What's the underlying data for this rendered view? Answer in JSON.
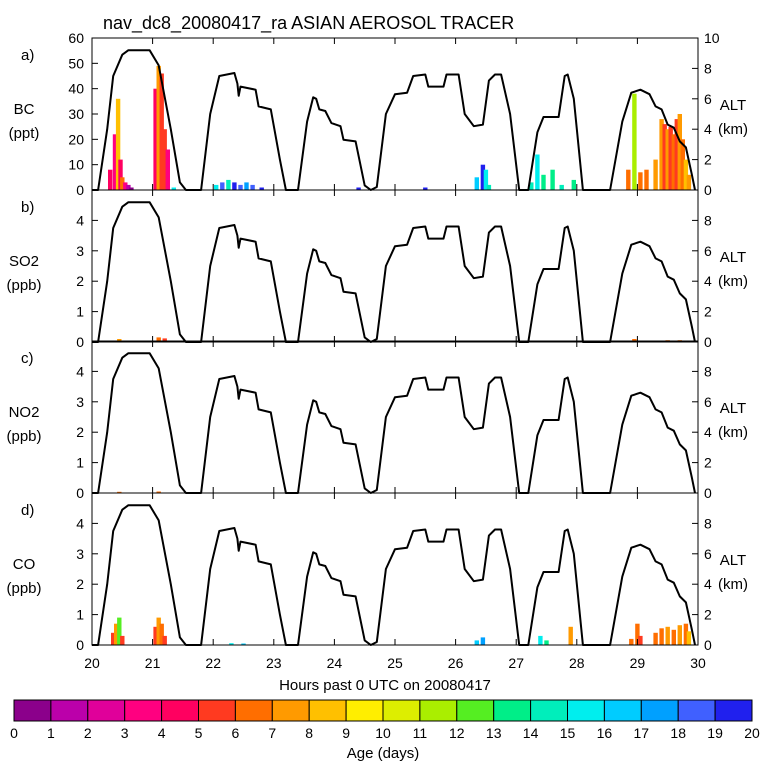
{
  "title": "nav_dc8_20080417_ra ASIAN AEROSOL TRACER",
  "xlabel": "Hours past 0 UTC on 20080417",
  "x_ticks": [
    20,
    21,
    22,
    23,
    24,
    25,
    26,
    27,
    28,
    29,
    30
  ],
  "xlim": [
    20,
    30
  ],
  "alt_axis": {
    "label": "ALT",
    "unit": "(km)",
    "ticks": [
      0,
      2,
      4,
      6,
      8,
      10
    ],
    "ylim": [
      0,
      10
    ]
  },
  "colorbar": {
    "label": "Age (days)",
    "ticks": [
      0,
      1,
      2,
      3,
      4,
      5,
      6,
      7,
      8,
      9,
      10,
      11,
      12,
      13,
      14,
      15,
      16,
      17,
      18,
      19,
      20
    ],
    "colors": [
      "#8b008b",
      "#bb00aa",
      "#e0009a",
      "#ff0080",
      "#ff0060",
      "#ff3a20",
      "#ff6e00",
      "#ff9a00",
      "#ffc000",
      "#ffee00",
      "#ddee00",
      "#aaee00",
      "#55ee22",
      "#00ee88",
      "#00eebb",
      "#00eeee",
      "#00ccff",
      "#00a0ff",
      "#4060ff",
      "#2020ee",
      "#7a1aff"
    ]
  },
  "panels": [
    {
      "letter": "a)",
      "species": "BC",
      "unit": "(ppt)",
      "y_ticks": [
        0,
        10,
        20,
        30,
        40,
        50,
        60
      ],
      "ylim": [
        0,
        60
      ]
    },
    {
      "letter": "b)",
      "species": "SO2",
      "unit": "(ppb)",
      "y_ticks": [
        0,
        1,
        2,
        3,
        4
      ],
      "ylim": [
        0,
        5
      ]
    },
    {
      "letter": "c)",
      "species": "NO2",
      "unit": "(ppb)",
      "y_ticks": [
        0,
        1,
        2,
        3,
        4
      ],
      "ylim": [
        0,
        5
      ]
    },
    {
      "letter": "d)",
      "species": "CO",
      "unit": "(ppb)",
      "y_ticks": [
        0,
        1,
        2,
        3,
        4
      ],
      "ylim": [
        0,
        5
      ]
    }
  ],
  "chart_data": {
    "type": "area",
    "title": "nav_dc8_20080417_ra ASIAN AEROSOL TRACER",
    "xlabel": "Hours past 0 UTC on 20080417",
    "xlim": [
      20,
      30
    ],
    "altitude_km": [
      [
        20.0,
        0
      ],
      [
        20.1,
        0
      ],
      [
        20.25,
        4
      ],
      [
        20.35,
        7.5
      ],
      [
        20.5,
        8.9
      ],
      [
        20.6,
        9.2
      ],
      [
        20.95,
        9.2
      ],
      [
        21.1,
        8.2
      ],
      [
        21.3,
        4
      ],
      [
        21.45,
        0.5
      ],
      [
        21.55,
        0
      ],
      [
        21.8,
        0
      ],
      [
        21.95,
        5
      ],
      [
        22.1,
        7.5
      ],
      [
        22.35,
        7.7
      ],
      [
        22.4,
        7
      ],
      [
        22.42,
        6.2
      ],
      [
        22.45,
        6.8
      ],
      [
        22.7,
        6.6
      ],
      [
        22.75,
        5.5
      ],
      [
        22.95,
        5.3
      ],
      [
        23.1,
        2
      ],
      [
        23.2,
        0
      ],
      [
        23.4,
        0
      ],
      [
        23.55,
        4.5
      ],
      [
        23.65,
        6.1
      ],
      [
        23.7,
        6
      ],
      [
        23.75,
        5.3
      ],
      [
        23.85,
        5.2
      ],
      [
        23.95,
        4.4
      ],
      [
        24.1,
        4.2
      ],
      [
        24.15,
        3.3
      ],
      [
        24.35,
        3.2
      ],
      [
        24.5,
        0.3
      ],
      [
        24.6,
        0
      ],
      [
        24.7,
        0.2
      ],
      [
        24.85,
        5
      ],
      [
        25.0,
        6.3
      ],
      [
        25.2,
        6.4
      ],
      [
        25.3,
        7.5
      ],
      [
        25.5,
        7.6
      ],
      [
        25.55,
        6.8
      ],
      [
        25.8,
        6.8
      ],
      [
        25.85,
        7.6
      ],
      [
        26.05,
        7.6
      ],
      [
        26.15,
        5
      ],
      [
        26.3,
        4.2
      ],
      [
        26.45,
        4.3
      ],
      [
        26.55,
        7.2
      ],
      [
        26.65,
        7.6
      ],
      [
        26.75,
        7.6
      ],
      [
        26.9,
        5
      ],
      [
        27.05,
        0
      ],
      [
        27.2,
        0
      ],
      [
        27.35,
        3.8
      ],
      [
        27.45,
        4.8
      ],
      [
        27.7,
        4.8
      ],
      [
        27.8,
        7.5
      ],
      [
        27.85,
        7.6
      ],
      [
        27.95,
        6
      ],
      [
        28.1,
        0
      ],
      [
        28.55,
        0
      ],
      [
        28.75,
        4.5
      ],
      [
        28.9,
        6.4
      ],
      [
        29.05,
        6.6
      ],
      [
        29.2,
        6.3
      ],
      [
        29.3,
        5.5
      ],
      [
        29.4,
        5.3
      ],
      [
        29.5,
        4.3
      ],
      [
        29.6,
        4.1
      ],
      [
        29.7,
        3.2
      ],
      [
        29.8,
        2.8
      ],
      [
        29.9,
        1
      ],
      [
        29.95,
        0
      ]
    ],
    "series": [
      {
        "name": "BC",
        "unit": "ppt",
        "values": [
          [
            20.3,
            8,
            4
          ],
          [
            20.38,
            22,
            3
          ],
          [
            20.43,
            36,
            8
          ],
          [
            20.47,
            12,
            4
          ],
          [
            20.5,
            5,
            6
          ],
          [
            20.55,
            3,
            3
          ],
          [
            20.6,
            2,
            1
          ],
          [
            20.65,
            1,
            0
          ],
          [
            21.05,
            40,
            4
          ],
          [
            21.1,
            49,
            7
          ],
          [
            21.15,
            46,
            5
          ],
          [
            21.2,
            24,
            5
          ],
          [
            21.25,
            16,
            3
          ],
          [
            21.35,
            1,
            15
          ],
          [
            22.05,
            2,
            15
          ],
          [
            22.15,
            3,
            18
          ],
          [
            22.25,
            4,
            14
          ],
          [
            22.35,
            3,
            19
          ],
          [
            22.45,
            2,
            18
          ],
          [
            22.55,
            3,
            17
          ],
          [
            22.65,
            2,
            18
          ],
          [
            22.8,
            1,
            19
          ],
          [
            24.4,
            1,
            19
          ],
          [
            25.5,
            1,
            19
          ],
          [
            26.35,
            5,
            16
          ],
          [
            26.45,
            10,
            19
          ],
          [
            26.5,
            8,
            15
          ],
          [
            26.55,
            2,
            14
          ],
          [
            27.25,
            3,
            14
          ],
          [
            27.35,
            14,
            15
          ],
          [
            27.45,
            6,
            13
          ],
          [
            27.6,
            8,
            13
          ],
          [
            27.75,
            2,
            14
          ],
          [
            27.95,
            4,
            13
          ],
          [
            28.85,
            8,
            6
          ],
          [
            28.95,
            38,
            11
          ],
          [
            29.05,
            7,
            6
          ],
          [
            29.15,
            8,
            6
          ],
          [
            29.3,
            12,
            7
          ],
          [
            29.4,
            28,
            7
          ],
          [
            29.45,
            26,
            5
          ],
          [
            29.5,
            24,
            7
          ],
          [
            29.55,
            25,
            5
          ],
          [
            29.6,
            22,
            6
          ],
          [
            29.65,
            28,
            5
          ],
          [
            29.7,
            30,
            7
          ],
          [
            29.75,
            20,
            6
          ],
          [
            29.8,
            12,
            8
          ],
          [
            29.85,
            6,
            7
          ]
        ]
      },
      {
        "name": "SO2",
        "unit": "ppb",
        "values": [
          [
            20.45,
            0.1,
            7
          ],
          [
            21.1,
            0.15,
            6
          ],
          [
            21.2,
            0.12,
            5
          ],
          [
            28.95,
            0.1,
            6
          ],
          [
            29.3,
            0.05,
            7
          ],
          [
            29.5,
            0.06,
            6
          ],
          [
            29.7,
            0.06,
            6
          ],
          [
            29.8,
            0.05,
            5
          ]
        ]
      },
      {
        "name": "NO2",
        "unit": "ppb",
        "values": [
          [
            20.45,
            0.04,
            6
          ],
          [
            21.1,
            0.05,
            6
          ]
        ]
      },
      {
        "name": "CO",
        "unit": "ppb",
        "values": [
          [
            20.35,
            0.4,
            5
          ],
          [
            20.4,
            0.7,
            7
          ],
          [
            20.45,
            0.9,
            12
          ],
          [
            20.5,
            0.3,
            5
          ],
          [
            21.05,
            0.6,
            5
          ],
          [
            21.1,
            0.9,
            7
          ],
          [
            21.15,
            0.7,
            6
          ],
          [
            21.2,
            0.3,
            5
          ],
          [
            22.3,
            0.06,
            15
          ],
          [
            22.5,
            0.05,
            16
          ],
          [
            26.35,
            0.15,
            16
          ],
          [
            26.45,
            0.25,
            17
          ],
          [
            27.4,
            0.3,
            15
          ],
          [
            27.5,
            0.15,
            13
          ],
          [
            27.9,
            0.6,
            7
          ],
          [
            28.9,
            0.2,
            6
          ],
          [
            29.0,
            0.7,
            6
          ],
          [
            29.05,
            0.3,
            5
          ],
          [
            29.3,
            0.4,
            6
          ],
          [
            29.4,
            0.55,
            6
          ],
          [
            29.5,
            0.6,
            7
          ],
          [
            29.6,
            0.5,
            6
          ],
          [
            29.7,
            0.65,
            7
          ],
          [
            29.8,
            0.7,
            6
          ],
          [
            29.85,
            0.45,
            8
          ]
        ]
      }
    ],
    "value_format": "[hour, value, age_days]"
  }
}
